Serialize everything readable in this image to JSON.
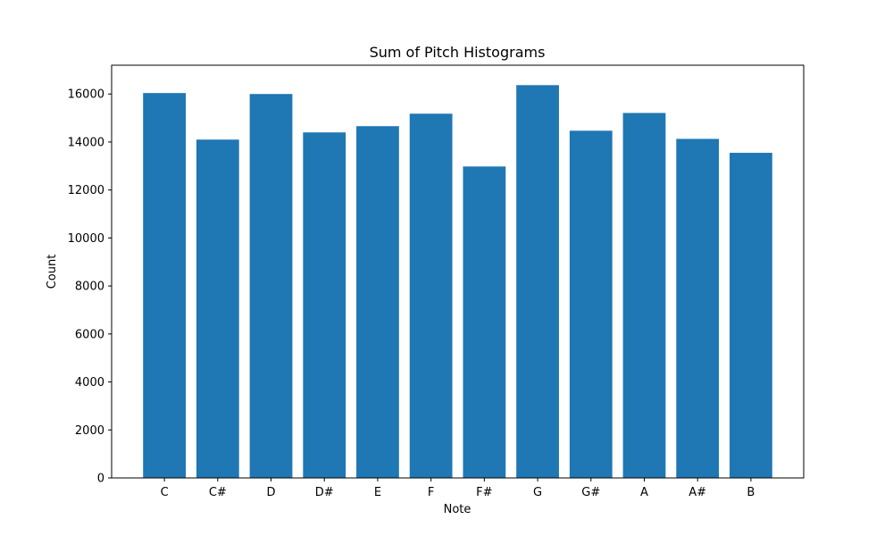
{
  "chart_data": {
    "type": "bar",
    "title": "Sum of Pitch Histograms",
    "xlabel": "Note",
    "ylabel": "Count",
    "categories": [
      "C",
      "C#",
      "D",
      "D#",
      "E",
      "F",
      "F#",
      "G",
      "G#",
      "A",
      "A#",
      "B"
    ],
    "values": [
      16040,
      14100,
      16000,
      14400,
      14660,
      15180,
      12980,
      16370,
      14470,
      15210,
      14130,
      13550
    ],
    "ylim": [
      0,
      17200
    ],
    "yticks": [
      0,
      2000,
      4000,
      6000,
      8000,
      10000,
      12000,
      14000,
      16000
    ],
    "grid": false,
    "bar_color": "#1f77b4"
  }
}
